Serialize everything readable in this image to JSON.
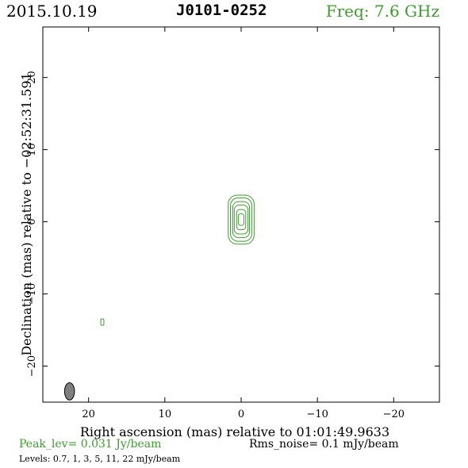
{
  "header": {
    "date": "2015.10.19",
    "source": "J0101-0252",
    "freq": "Freq: 7.6 GHz"
  },
  "chart_data": {
    "type": "contour",
    "xlabel": "Right ascension (mas) relative to 01:01:49.9633",
    "ylabel": "Declination (mas) relative to −02:52:31.591",
    "xlim": [
      26,
      -26
    ],
    "ylim": [
      -25,
      27
    ],
    "xticks": [
      20,
      10,
      0,
      -10,
      -20
    ],
    "yticks": [
      20,
      10,
      0,
      -10,
      -20
    ],
    "xtick_labels": [
      "20",
      "10",
      "0",
      "−10",
      "−20"
    ],
    "ytick_labels": [
      "20",
      "10",
      "0",
      "−10",
      "−20"
    ],
    "contour_levels_mJy": [
      0.7,
      1,
      3,
      5,
      11,
      22
    ],
    "components": [
      {
        "x_center": 0.0,
        "y_center": 0.3,
        "contours": [
          {
            "level": 0.7,
            "ra_halfwidth": 1.7,
            "dec_halfheight": 3.4
          },
          {
            "level": 1,
            "ra_halfwidth": 1.4,
            "dec_halfheight": 3.0
          },
          {
            "level": 3,
            "ra_halfwidth": 1.1,
            "dec_halfheight": 2.5
          },
          {
            "level": 5,
            "ra_halfwidth": 0.9,
            "dec_halfheight": 2.0
          },
          {
            "level": 11,
            "ra_halfwidth": 0.6,
            "dec_halfheight": 1.4
          },
          {
            "level": 22,
            "ra_halfwidth": 0.35,
            "dec_halfheight": 0.8
          }
        ]
      },
      {
        "x_center": 18.2,
        "y_center": -13.9,
        "contours": [
          {
            "level": 0.7,
            "ra_halfwidth": 0.2,
            "dec_halfheight": 0.45
          }
        ]
      }
    ],
    "beam": {
      "x_center": 22.5,
      "y_center": -23.5,
      "ra_halfwidth": 0.65,
      "dec_halfheight": 1.2,
      "color": "#7f7f7f"
    },
    "contour_color": "#3aa02a"
  },
  "footer": {
    "peak": "Peak_lev=  0.031 Jy/beam",
    "rms": "Rms_noise=   0.1 mJy/beam",
    "levels": "Levels: 0.7,    1,    3,    5,   11,   22  mJy/beam"
  }
}
